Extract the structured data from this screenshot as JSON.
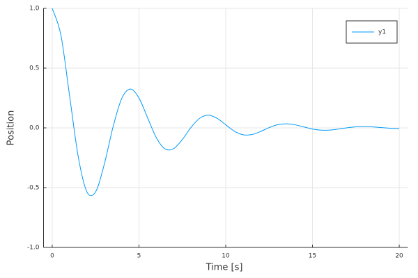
{
  "chart_data": {
    "type": "line",
    "xlabel": "Time [s]",
    "ylabel": "Position",
    "x": [
      0,
      0.5,
      1,
      1.5,
      2,
      2.5,
      3,
      3.5,
      4,
      4.5,
      5,
      5.5,
      6,
      6.5,
      7,
      7.5,
      8,
      8.5,
      9,
      9.5,
      10,
      10.5,
      11,
      11.5,
      12,
      12.5,
      13,
      13.5,
      14,
      14.5,
      15,
      15.5,
      16,
      16.5,
      17,
      17.5,
      18,
      18.5,
      19,
      19.5,
      20
    ],
    "series": [
      {
        "name": "y1",
        "color": "#009af9",
        "values": [
          1,
          0.7765,
          0.2695,
          -0.241,
          -0.5352,
          -0.5349,
          -0.3052,
          0.0046,
          0.2439,
          0.3251,
          0.2496,
          0.0836,
          -0.0818,
          -0.1754,
          -0.1731,
          -0.097,
          0.0037,
          0.0807,
          0.106,
          0.0802,
          0.0258,
          -0.0277,
          -0.0574,
          -0.056,
          -0.0308,
          0.002,
          0.0267,
          0.0345,
          0.0258,
          0.0079,
          -0.0094,
          -0.0189,
          -0.0181,
          -0.0098,
          0.0009,
          0.0088,
          0.0112,
          0.0083,
          0.0024,
          -0.0031,
          -0.0061
        ]
      }
    ],
    "xlim": [
      -0.5,
      20.5
    ],
    "xticks": [
      0,
      5,
      10,
      15,
      20
    ],
    "ylim": [
      -1,
      1
    ],
    "yticks": [
      {
        "value": -1,
        "label": "-1.0"
      },
      -0.5,
      {
        "value": 0,
        "label": "0.0"
      },
      0.5,
      {
        "value": 1,
        "label": "1.0"
      }
    ],
    "grid": true,
    "legend": "top-right"
  }
}
